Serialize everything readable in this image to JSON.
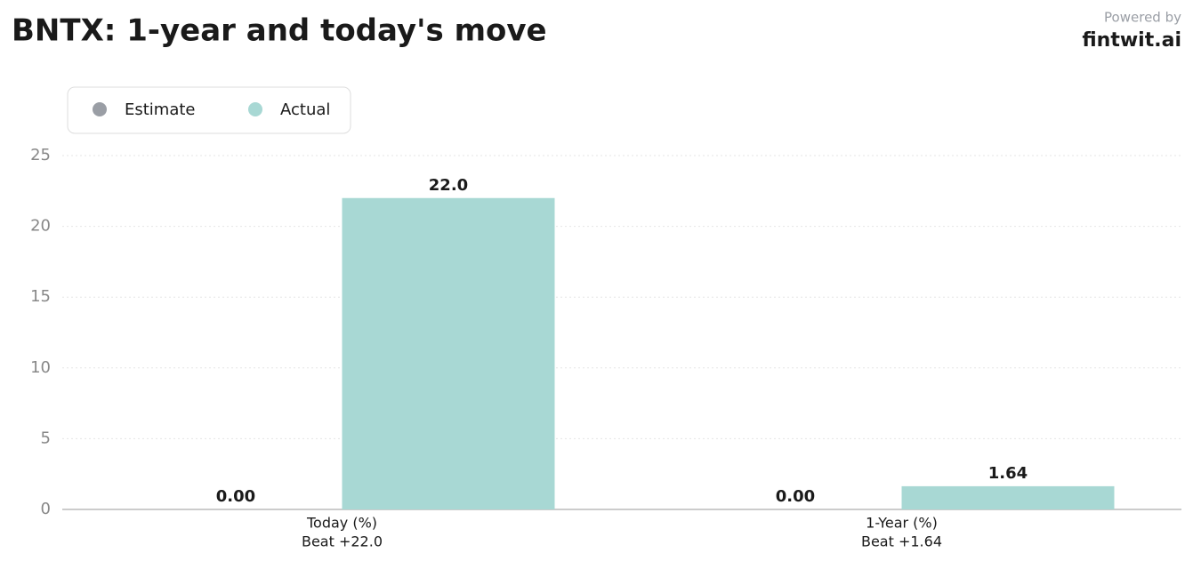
{
  "chart_data": {
    "type": "bar",
    "title": "BNTX: 1-year and today's move",
    "branding": {
      "prefix": "Powered by",
      "brand": "fintwit.ai"
    },
    "categories": [
      "Today (%)",
      "1-Year (%)"
    ],
    "sublabels": [
      "Beat +22.0",
      "Beat +1.64"
    ],
    "series": [
      {
        "name": "Estimate",
        "color": "#9a9ea5",
        "values": [
          0,
          0
        ],
        "value_labels": [
          "0.00",
          "0.00"
        ]
      },
      {
        "name": "Actual",
        "color": "#a8d8d4",
        "values": [
          22,
          1.64
        ],
        "value_labels": [
          "22.0",
          "1.64"
        ]
      }
    ],
    "ylim": [
      0,
      25
    ],
    "yticks": [
      0,
      5,
      10,
      15,
      20,
      25
    ],
    "grid": true,
    "legend": "top-left"
  }
}
